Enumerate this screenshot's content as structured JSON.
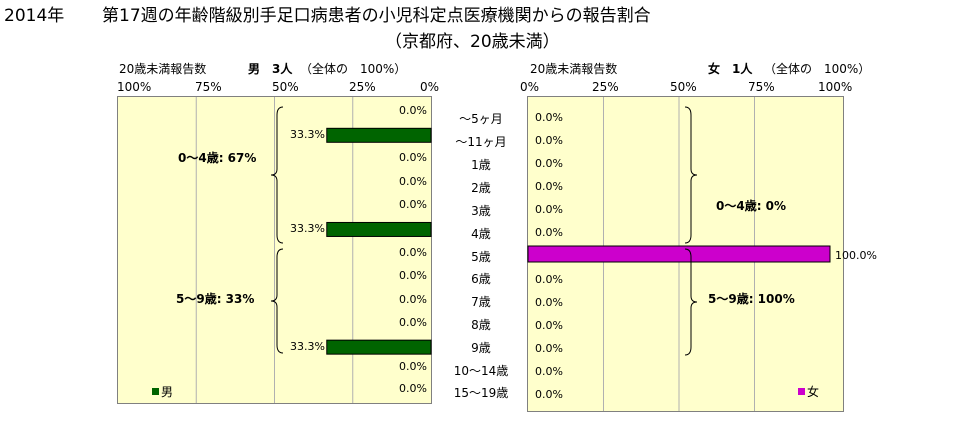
{
  "title": {
    "year": "2014年",
    "main": "第17週の年齢階級別手足口病患者の小児科定点医療機関からの報告割合",
    "sub": "（京都府、20歳未満）"
  },
  "chart_data": [
    {
      "type": "bar",
      "orientation": "horizontal",
      "direction": "right-to-left",
      "header_label": "20歳未満報告数",
      "header_value": "男　3人",
      "header_note": "（全体の　100%）",
      "xlim": [
        0,
        100
      ],
      "tick_labels": [
        "100%",
        "75%",
        "50%",
        "25%",
        "0%"
      ],
      "categories": [
        "～5ヶ月",
        "～11ヶ月",
        "1歳",
        "2歳",
        "3歳",
        "4歳",
        "5歳",
        "6歳",
        "7歳",
        "8歳",
        "9歳",
        "10～14歳",
        "15～19歳"
      ],
      "series": [
        {
          "name": "男",
          "color": "#006400",
          "values": [
            0.0,
            33.3,
            0.0,
            0.0,
            0.0,
            33.3,
            0.0,
            0.0,
            0.0,
            0.0,
            33.3,
            0.0,
            0.0
          ],
          "value_labels": [
            "0.0%",
            "33.3%",
            "0.0%",
            "0.0%",
            "0.0%",
            "33.3%",
            "0.0%",
            "0.0%",
            "0.0%",
            "0.0%",
            "33.3%",
            "0.0%",
            "0.0%"
          ]
        }
      ],
      "groups": [
        {
          "label": "0～4歳: 67%"
        },
        {
          "label": "5～9歳: 33%"
        }
      ],
      "legend": "bottom-left"
    },
    {
      "type": "bar",
      "orientation": "horizontal",
      "direction": "left-to-right",
      "header_label": "20歳未満報告数",
      "header_value": "女　1人",
      "header_note": "（全体の　100%）",
      "xlim": [
        0,
        100
      ],
      "tick_labels": [
        "0%",
        "25%",
        "50%",
        "75%",
        "100%"
      ],
      "categories": [
        "～5ヶ月",
        "～11ヶ月",
        "1歳",
        "2歳",
        "3歳",
        "4歳",
        "5歳",
        "6歳",
        "7歳",
        "8歳",
        "9歳",
        "10～14歳",
        "15～19歳"
      ],
      "series": [
        {
          "name": "女",
          "color": "#cc00cc",
          "values": [
            0.0,
            0.0,
            0.0,
            0.0,
            0.0,
            0.0,
            100.0,
            0.0,
            0.0,
            0.0,
            0.0,
            0.0,
            0.0
          ],
          "value_labels": [
            "0.0%",
            "0.0%",
            "0.0%",
            "0.0%",
            "0.0%",
            "0.0%",
            "100.0%",
            "0.0%",
            "0.0%",
            "0.0%",
            "0.0%",
            "0.0%",
            "0.0%"
          ]
        }
      ],
      "groups": [
        {
          "label": "0～4歳: 0%"
        },
        {
          "label": "5～9歳: 100%"
        }
      ],
      "legend": "bottom-right"
    }
  ]
}
